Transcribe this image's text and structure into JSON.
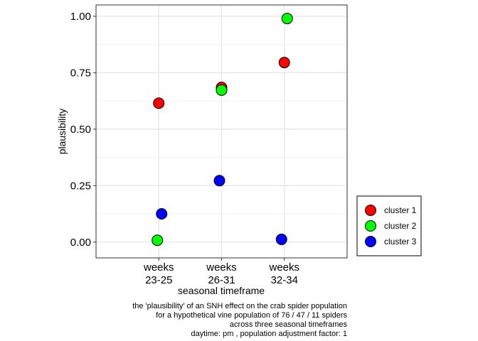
{
  "chart_data": {
    "type": "scatter",
    "xlabel": "seasonal timeframe",
    "ylabel": "plausibility",
    "categories": [
      [
        "weeks",
        "23-25"
      ],
      [
        "weeks",
        "26-31"
      ],
      [
        "weeks",
        "32-34"
      ]
    ],
    "ylim": [
      -0.07,
      1.05
    ],
    "yticks": [
      "0.00",
      "0.25",
      "0.50",
      "0.75",
      "1.00"
    ],
    "grid": true,
    "legend_position": "right-bottom",
    "series": [
      {
        "name": "cluster 1",
        "color": "#ff0000",
        "values": [
          0.615,
          0.685,
          0.795
        ]
      },
      {
        "name": "cluster 2",
        "color": "#00ff00",
        "values": [
          0.008,
          0.673,
          0.99
        ]
      },
      {
        "name": "cluster 3",
        "color": "#0000ff",
        "values": [
          0.125,
          0.272,
          0.012
        ]
      }
    ],
    "caption": [
      "the 'plausibility' of an SNH effect on the crab spider population",
      "for a hypothetical vine population of 76 / 47 / 11 spiders",
      "across three seasonal timeframes",
      "daytime: pm , population adjustment factor: 1"
    ]
  }
}
